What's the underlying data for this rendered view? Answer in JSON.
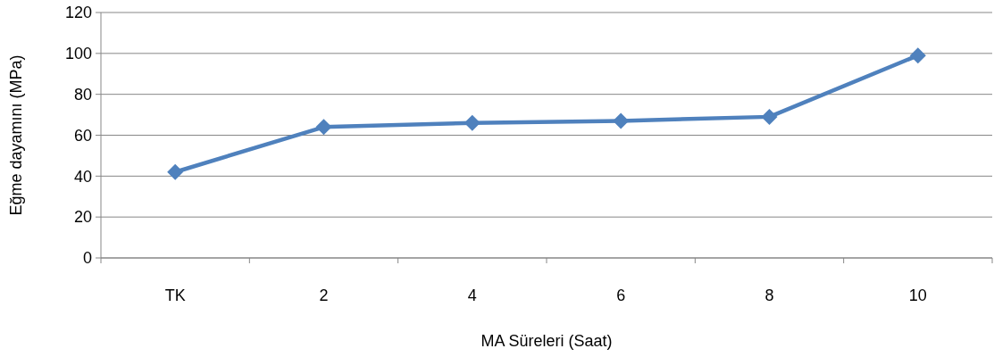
{
  "chart_data": {
    "type": "line",
    "xlabel": "MA Süreleri (Saat)",
    "ylabel": "Eğme dayamını (MPa)",
    "categories": [
      "TK",
      "2",
      "4",
      "6",
      "8",
      "10"
    ],
    "series": [
      {
        "color": "#4f81bd",
        "values": [
          42,
          64,
          66,
          67,
          69,
          99
        ]
      }
    ],
    "ylim": [
      0,
      120
    ],
    "yticks": [
      0,
      20,
      40,
      60,
      80,
      100,
      120
    ],
    "grid": "y",
    "marker": "diamond",
    "line_style": "solid"
  }
}
